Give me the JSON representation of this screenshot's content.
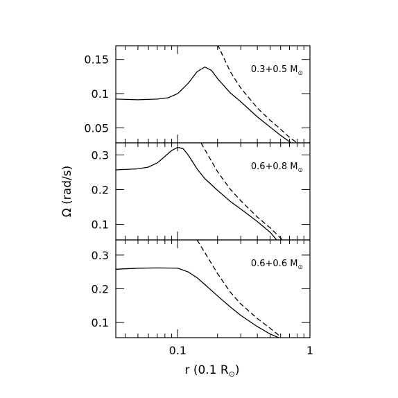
{
  "chart_data": {
    "type": "line",
    "xlabel": "r (0.1 R",
    "xlabel_sub": "⊙",
    "xlabel_close": ")",
    "ylabel": "Ω (rad/s)",
    "xscale": "log",
    "xlim": [
      0.034,
      1.0
    ],
    "xticks": [
      {
        "value": 0.1,
        "label": "0.1"
      },
      {
        "value": 1,
        "label": "1"
      }
    ],
    "panels": [
      {
        "label": "0.3+0.5 M",
        "label_sub": "⊙",
        "ylim": [
          0.028,
          0.17
        ],
        "yticks": [
          {
            "value": 0.05,
            "label": "0.05"
          },
          {
            "value": 0.1,
            "label": "0.1"
          },
          {
            "value": 0.15,
            "label": "0.15"
          }
        ],
        "series": [
          {
            "style": "solid",
            "x": [
              0.034,
              0.05,
              0.07,
              0.085,
              0.1,
              0.12,
              0.14,
              0.16,
              0.18,
              0.2,
              0.25,
              0.3,
              0.4,
              0.5,
              0.6,
              0.72
            ],
            "y": [
              0.092,
              0.091,
              0.092,
              0.094,
              0.1,
              0.115,
              0.132,
              0.139,
              0.134,
              0.122,
              0.101,
              0.088,
              0.066,
              0.051,
              0.039,
              0.028
            ]
          },
          {
            "style": "dashed",
            "x": [
              0.2,
              0.25,
              0.3,
              0.4,
              0.5,
              0.6,
              0.7,
              0.8
            ],
            "y": [
              0.172,
              0.132,
              0.108,
              0.079,
              0.061,
              0.048,
              0.036,
              0.028
            ]
          }
        ]
      },
      {
        "label": "0.6+0.8 M",
        "label_sub": "⊙",
        "ylim": [
          0.055,
          0.335
        ],
        "yticks": [
          {
            "value": 0.1,
            "label": "0.1"
          },
          {
            "value": 0.2,
            "label": "0.2"
          },
          {
            "value": 0.3,
            "label": "0.3"
          }
        ],
        "series": [
          {
            "style": "solid",
            "x": [
              0.034,
              0.05,
              0.06,
              0.07,
              0.08,
              0.09,
              0.1,
              0.11,
              0.12,
              0.14,
              0.16,
              0.2,
              0.25,
              0.3,
              0.4,
              0.5,
              0.56
            ],
            "y": [
              0.257,
              0.26,
              0.265,
              0.277,
              0.296,
              0.313,
              0.322,
              0.318,
              0.3,
              0.26,
              0.232,
              0.198,
              0.166,
              0.144,
              0.108,
              0.077,
              0.055
            ]
          },
          {
            "style": "dashed",
            "x": [
              0.15,
              0.2,
              0.25,
              0.3,
              0.4,
              0.5,
              0.62
            ],
            "y": [
              0.335,
              0.252,
              0.201,
              0.168,
              0.121,
              0.09,
              0.055
            ]
          }
        ]
      },
      {
        "label": "0.6+0.6 M",
        "label_sub": "⊙",
        "ylim": [
          0.055,
          0.345
        ],
        "yticks": [
          {
            "value": 0.1,
            "label": "0.1"
          },
          {
            "value": 0.2,
            "label": "0.2"
          },
          {
            "value": 0.3,
            "label": "0.3"
          }
        ],
        "series": [
          {
            "style": "solid",
            "x": [
              0.034,
              0.05,
              0.07,
              0.1,
              0.12,
              0.14,
              0.16,
              0.2,
              0.25,
              0.3,
              0.4,
              0.5,
              0.58
            ],
            "y": [
              0.258,
              0.261,
              0.262,
              0.261,
              0.25,
              0.233,
              0.213,
              0.179,
              0.146,
              0.121,
              0.088,
              0.066,
              0.055
            ]
          },
          {
            "style": "dashed",
            "x": [
              0.14,
              0.18,
              0.2,
              0.25,
              0.3,
              0.4,
              0.5,
              0.6
            ],
            "y": [
              0.345,
              0.275,
              0.245,
              0.19,
              0.155,
              0.112,
              0.083,
              0.058
            ]
          }
        ]
      }
    ]
  }
}
